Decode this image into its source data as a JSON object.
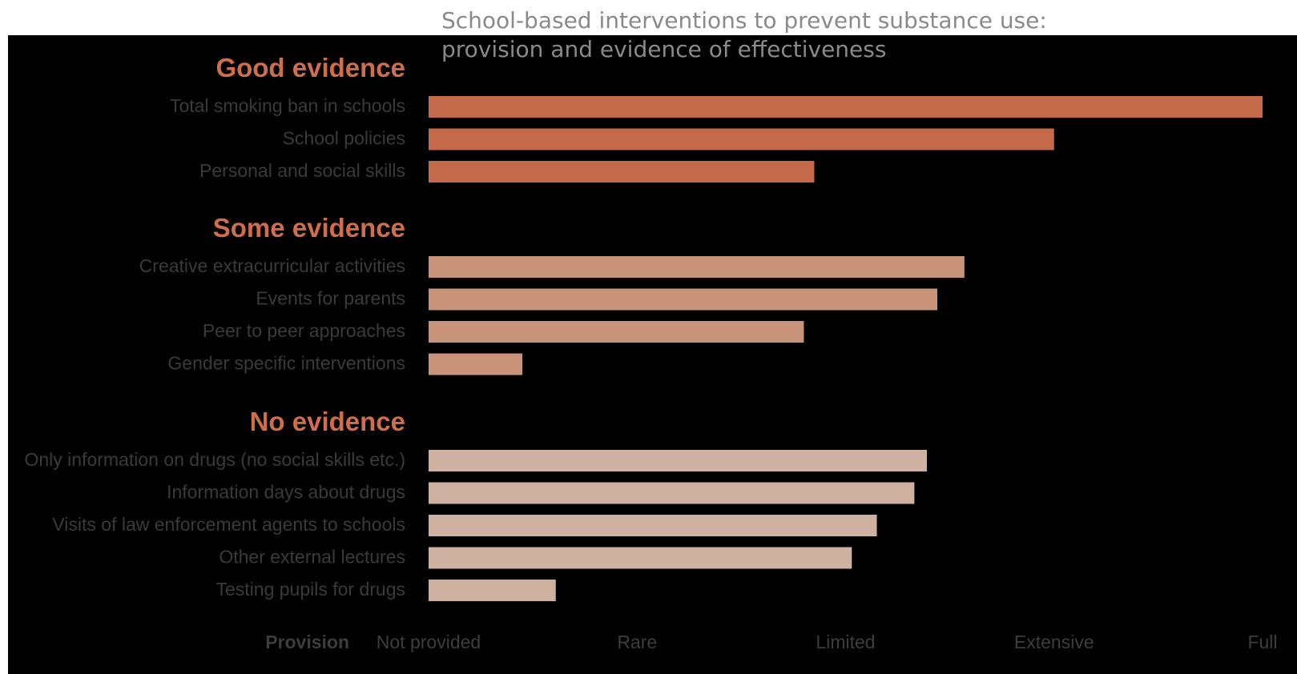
{
  "chart_data": {
    "type": "bar",
    "orientation": "horizontal",
    "title": "School-based interventions to prevent substance use:",
    "subtitle": "provision and evidence of effectiveness",
    "xlabel": "Provision",
    "x_ticks": [
      "Not provided",
      "Rare",
      "Limited",
      "Extensive",
      "Full"
    ],
    "xlim": [
      0,
      4
    ],
    "grid": false,
    "groups": [
      {
        "name": "Good evidence",
        "color": "#c46a4b",
        "label_color": "#d06e4c",
        "categories": [
          "Total smoking ban in schools",
          "School policies",
          "Personal and social skills"
        ],
        "values": [
          4.0,
          3.0,
          1.85
        ]
      },
      {
        "name": "Some evidence",
        "color": "#c9937a",
        "label_color": "#d06e4c",
        "categories": [
          "Creative extracurricular activities",
          "Events for parents",
          "Peer to peer approaches",
          "Gender specific interventions"
        ],
        "values": [
          2.57,
          2.44,
          1.8,
          0.45
        ]
      },
      {
        "name": "No evidence",
        "color": "#cfb1a2",
        "label_color": "#d06e4c",
        "categories": [
          "Only information on drugs (no social skills etc.)",
          "Information days about drugs",
          "Visits of law enforcement agents to schools",
          "Other external lectures",
          "Testing pupils for drugs"
        ],
        "values": [
          2.39,
          2.33,
          2.15,
          2.03,
          0.61
        ]
      }
    ]
  },
  "colors": {
    "background": "#000000",
    "title_text": "#8a8a8a",
    "category_text": "#3a3a3a",
    "axis_text": "#3d3d3d"
  }
}
